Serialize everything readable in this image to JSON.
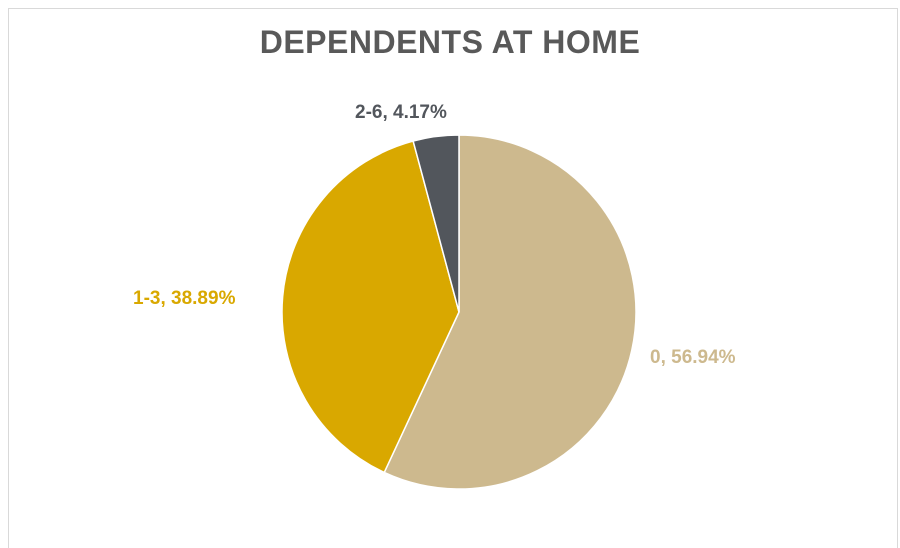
{
  "chart_data": {
    "type": "pie",
    "title": "DEPENDENTS AT HOME",
    "slices": [
      {
        "category": "0",
        "value": 56.94,
        "label": "0, 56.94%",
        "color": "#CDB98E"
      },
      {
        "category": "1-3",
        "value": 38.89,
        "label": "1-3, 38.89%",
        "color": "#D9A800"
      },
      {
        "category": "2-6",
        "value": 4.17,
        "label": "2-6, 4.17%",
        "color": "#52565C"
      }
    ],
    "start_angle_deg": 0,
    "direction": "clockwise",
    "legend": "none"
  }
}
